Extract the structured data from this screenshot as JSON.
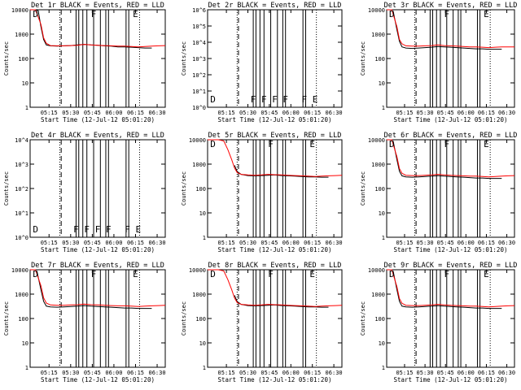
{
  "chart_data": [
    {
      "type": "line",
      "title": "Det 1r BLACK = Events, RED = LLD",
      "xlabel": "Start Time (12-Jul-12 05:01:20)",
      "ylabel": "Counts/sec",
      "yscale": "log",
      "ylim": [
        1,
        10000
      ],
      "ytick_labels": [
        "10000",
        "1000",
        "100",
        "10",
        "1"
      ],
      "xtick_labels": [
        "05:15",
        "05:30",
        "05:45",
        "06:00",
        "06:15",
        "06:30"
      ],
      "markers": [
        "D",
        "F",
        "E"
      ],
      "series": [
        {
          "color": "#000000",
          "x": [
            2,
            4,
            6,
            8,
            10,
            12,
            15,
            20,
            25,
            30,
            35,
            40,
            45,
            50,
            55,
            60,
            65,
            70,
            75,
            80,
            85,
            90
          ],
          "values": [
            10000,
            10000,
            9000,
            2000,
            600,
            360,
            330,
            320,
            330,
            340,
            360,
            380,
            360,
            350,
            330,
            320,
            300,
            300,
            290,
            280,
            270,
            270
          ]
        },
        {
          "color": "#ff0000",
          "x": [
            0,
            4,
            8,
            10,
            12,
            15,
            20,
            25,
            30,
            35,
            40,
            45,
            50,
            55,
            60,
            65,
            70,
            75,
            80,
            85,
            90,
            95,
            100
          ],
          "values": [
            10000,
            10000,
            2500,
            700,
            420,
            340,
            330,
            330,
            340,
            350,
            380,
            360,
            350,
            340,
            330,
            320,
            320,
            310,
            300,
            310,
            320,
            330,
            340
          ]
        }
      ]
    },
    {
      "type": "line",
      "title": "Det 2r BLACK = Events, RED = LLD",
      "xlabel": "Start Time (12-Jul-12 05:01:20)",
      "ylabel": "Counts/sec",
      "yscale": "log",
      "ylim": [
        1,
        1000000
      ],
      "ytick_labels": [
        "10^6",
        "10^5",
        "10^4",
        "10^3",
        "10^2",
        "10^1",
        "10^0"
      ],
      "xtick_labels": [
        "05:15",
        "05:30",
        "05:45",
        "06:00",
        "06:15",
        "06:30"
      ],
      "markers": [
        "D",
        "F",
        "F",
        "F",
        "F",
        "F",
        "E"
      ],
      "series": []
    },
    {
      "type": "line",
      "title": "Det 3r BLACK = Events, RED = LLD",
      "xlabel": "Start Time (12-Jul-12 05:01:20)",
      "ylabel": "Counts/sec",
      "yscale": "log",
      "ylim": [
        1,
        10000
      ],
      "ytick_labels": [
        "10000",
        "1000",
        "100",
        "10",
        "1"
      ],
      "xtick_labels": [
        "05:15",
        "05:30",
        "05:45",
        "06:00",
        "06:15",
        "06:30"
      ],
      "markers": [
        "D",
        "F",
        "E"
      ],
      "series": [
        {
          "color": "#000000",
          "x": [
            5,
            8,
            10,
            12,
            15,
            20,
            25,
            30,
            35,
            40,
            45,
            50,
            55,
            60,
            65,
            70,
            75,
            80,
            85,
            90
          ],
          "values": [
            9000,
            1500,
            500,
            300,
            270,
            260,
            270,
            280,
            290,
            310,
            300,
            290,
            280,
            270,
            260,
            250,
            250,
            240,
            240,
            240
          ]
        },
        {
          "color": "#ff0000",
          "x": [
            0,
            4,
            8,
            10,
            12,
            15,
            20,
            25,
            30,
            35,
            40,
            45,
            50,
            55,
            60,
            65,
            70,
            75,
            80,
            85,
            90,
            95,
            100
          ],
          "values": [
            10000,
            10000,
            2000,
            600,
            400,
            330,
            320,
            320,
            330,
            340,
            360,
            340,
            330,
            320,
            310,
            300,
            300,
            290,
            280,
            290,
            300,
            300,
            300
          ]
        }
      ]
    },
    {
      "type": "line",
      "title": "Det 4r BLACK = Events, RED = LLD",
      "xlabel": "Start Time (12-Jul-12 05:01:20)",
      "ylabel": "Counts/sec",
      "yscale": "log",
      "ylim": [
        1,
        10000
      ],
      "ytick_labels": [
        "10^4",
        "10^3",
        "10^2",
        "10^1",
        "10^0"
      ],
      "xtick_labels": [
        "05:15",
        "05:30",
        "05:45",
        "06:00",
        "06:15",
        "06:30"
      ],
      "markers": [
        "D",
        "F",
        "F",
        "F",
        "F",
        "F",
        "E"
      ],
      "series": []
    },
    {
      "type": "line",
      "title": "Det 5r BLACK = Events, RED = LLD",
      "xlabel": "Start Time (12-Jul-12 05:01:20)",
      "ylabel": "Counts/sec",
      "yscale": "log",
      "ylim": [
        1,
        10000
      ],
      "ytick_labels": [
        "10000",
        "1000",
        "100",
        "10",
        "1"
      ],
      "xtick_labels": [
        "05:15",
        "05:30",
        "05:45",
        "06:00",
        "06:15",
        "06:30"
      ],
      "markers": [
        "D",
        "F",
        "E"
      ],
      "series": [
        {
          "color": "#000000",
          "x": [
            20,
            22,
            25,
            30,
            35,
            40,
            45,
            50,
            55,
            60,
            65,
            70,
            75,
            80,
            85,
            90
          ],
          "values": [
            900,
            500,
            380,
            340,
            330,
            340,
            350,
            360,
            340,
            330,
            320,
            310,
            300,
            300,
            290,
            290
          ]
        },
        {
          "color": "#ff0000",
          "x": [
            0,
            5,
            8,
            12,
            15,
            18,
            20,
            22,
            25,
            30,
            35,
            40,
            45,
            50,
            55,
            60,
            65,
            70,
            75,
            80,
            85,
            90,
            95,
            100
          ],
          "values": [
            10000,
            10000,
            10000,
            9000,
            4000,
            1500,
            700,
            450,
            380,
            360,
            350,
            360,
            380,
            370,
            360,
            350,
            340,
            330,
            320,
            310,
            320,
            330,
            340,
            350
          ]
        }
      ]
    },
    {
      "type": "line",
      "title": "Det 6r BLACK = Events, RED = LLD",
      "xlabel": "Start Time (12-Jul-12 05:01:20)",
      "ylabel": "Counts/sec",
      "yscale": "log",
      "ylim": [
        1,
        10000
      ],
      "ytick_labels": [
        "10000",
        "1000",
        "100",
        "10",
        "1"
      ],
      "xtick_labels": [
        "05:15",
        "05:30",
        "05:45",
        "06:00",
        "06:15",
        "06:30"
      ],
      "markers": [
        "D",
        "F",
        "E"
      ],
      "series": [
        {
          "color": "#000000",
          "x": [
            5,
            8,
            10,
            12,
            15,
            20,
            25,
            30,
            35,
            40,
            45,
            50,
            55,
            60,
            65,
            70,
            75,
            80,
            85,
            90
          ],
          "values": [
            9000,
            1500,
            500,
            330,
            300,
            290,
            300,
            310,
            320,
            340,
            320,
            310,
            300,
            290,
            280,
            270,
            270,
            260,
            260,
            260
          ]
        },
        {
          "color": "#ff0000",
          "x": [
            0,
            4,
            8,
            10,
            12,
            15,
            20,
            25,
            30,
            35,
            40,
            45,
            50,
            55,
            60,
            65,
            70,
            75,
            80,
            85,
            90,
            95,
            100
          ],
          "values": [
            10000,
            10000,
            2000,
            650,
            420,
            350,
            340,
            340,
            350,
            360,
            380,
            360,
            350,
            340,
            330,
            320,
            320,
            310,
            300,
            310,
            320,
            330,
            340
          ]
        }
      ]
    },
    {
      "type": "line",
      "title": "Det 7r BLACK = Events, RED = LLD",
      "xlabel": "Start Time (12-Jul-12 05:01:20)",
      "ylabel": "Counts/sec",
      "yscale": "log",
      "ylim": [
        1,
        10000
      ],
      "ytick_labels": [
        "10000",
        "1000",
        "100",
        "10",
        "1"
      ],
      "xtick_labels": [
        "05:15",
        "05:30",
        "05:45",
        "06:00",
        "06:15",
        "06:30"
      ],
      "markers": [
        "D",
        "F",
        "E"
      ],
      "series": [
        {
          "color": "#000000",
          "x": [
            5,
            8,
            10,
            12,
            15,
            20,
            25,
            30,
            35,
            40,
            45,
            50,
            55,
            60,
            65,
            70,
            75,
            80,
            85,
            90
          ],
          "values": [
            9000,
            1500,
            500,
            320,
            300,
            290,
            300,
            310,
            320,
            340,
            320,
            310,
            300,
            290,
            280,
            270,
            270,
            260,
            260,
            260
          ]
        },
        {
          "color": "#ff0000",
          "x": [
            0,
            4,
            8,
            10,
            12,
            15,
            20,
            25,
            30,
            35,
            40,
            45,
            50,
            55,
            60,
            65,
            70,
            75,
            80,
            85,
            90,
            95,
            100
          ],
          "values": [
            10000,
            10000,
            2200,
            700,
            430,
            360,
            350,
            350,
            360,
            370,
            390,
            370,
            360,
            350,
            340,
            330,
            330,
            320,
            310,
            320,
            330,
            340,
            350
          ]
        }
      ]
    },
    {
      "type": "line",
      "title": "Det 8r BLACK = Events, RED = LLD",
      "xlabel": "Start Time (12-Jul-12 05:01:20)",
      "ylabel": "Counts/sec",
      "yscale": "log",
      "ylim": [
        1,
        10000
      ],
      "ytick_labels": [
        "10000",
        "1000",
        "100",
        "10",
        "1"
      ],
      "xtick_labels": [
        "05:15",
        "05:30",
        "05:45",
        "06:00",
        "06:15",
        "06:30"
      ],
      "markers": [
        "D",
        "F",
        "E"
      ],
      "series": [
        {
          "color": "#000000",
          "x": [
            20,
            22,
            25,
            30,
            35,
            40,
            45,
            50,
            55,
            60,
            65,
            70,
            75,
            80,
            85,
            90
          ],
          "values": [
            900,
            500,
            380,
            340,
            330,
            340,
            350,
            360,
            340,
            330,
            320,
            310,
            300,
            300,
            290,
            290
          ]
        },
        {
          "color": "#ff0000",
          "x": [
            0,
            5,
            8,
            12,
            15,
            18,
            20,
            22,
            25,
            30,
            35,
            40,
            45,
            50,
            55,
            60,
            65,
            70,
            75,
            80,
            85,
            90,
            95,
            100
          ],
          "values": [
            10000,
            10000,
            10000,
            9000,
            4000,
            1500,
            700,
            450,
            380,
            360,
            350,
            360,
            380,
            370,
            360,
            350,
            340,
            330,
            320,
            310,
            320,
            330,
            340,
            350
          ]
        }
      ]
    },
    {
      "type": "line",
      "title": "Det 9r BLACK = Events, RED = LLD",
      "xlabel": "Start Time (12-Jul-12 05:01:20)",
      "ylabel": "Counts/sec",
      "yscale": "log",
      "ylim": [
        1,
        10000
      ],
      "ytick_labels": [
        "10000",
        "1000",
        "100",
        "10",
        "1"
      ],
      "xtick_labels": [
        "05:15",
        "05:30",
        "05:45",
        "06:00",
        "06:15",
        "06:30"
      ],
      "markers": [
        "D",
        "F",
        "E"
      ],
      "series": [
        {
          "color": "#000000",
          "x": [
            5,
            8,
            10,
            12,
            15,
            20,
            25,
            30,
            35,
            40,
            45,
            50,
            55,
            60,
            65,
            70,
            75,
            80,
            85,
            90
          ],
          "values": [
            9000,
            1500,
            500,
            320,
            300,
            290,
            300,
            310,
            320,
            340,
            320,
            310,
            300,
            290,
            280,
            270,
            270,
            260,
            260,
            260
          ]
        },
        {
          "color": "#ff0000",
          "x": [
            0,
            4,
            8,
            10,
            12,
            15,
            20,
            25,
            30,
            35,
            40,
            45,
            50,
            55,
            60,
            65,
            70,
            75,
            80,
            85,
            90,
            95,
            100
          ],
          "values": [
            10000,
            10000,
            2000,
            650,
            420,
            350,
            340,
            340,
            350,
            360,
            380,
            360,
            350,
            340,
            330,
            320,
            320,
            310,
            300,
            310,
            320,
            330,
            340
          ]
        }
      ]
    }
  ]
}
